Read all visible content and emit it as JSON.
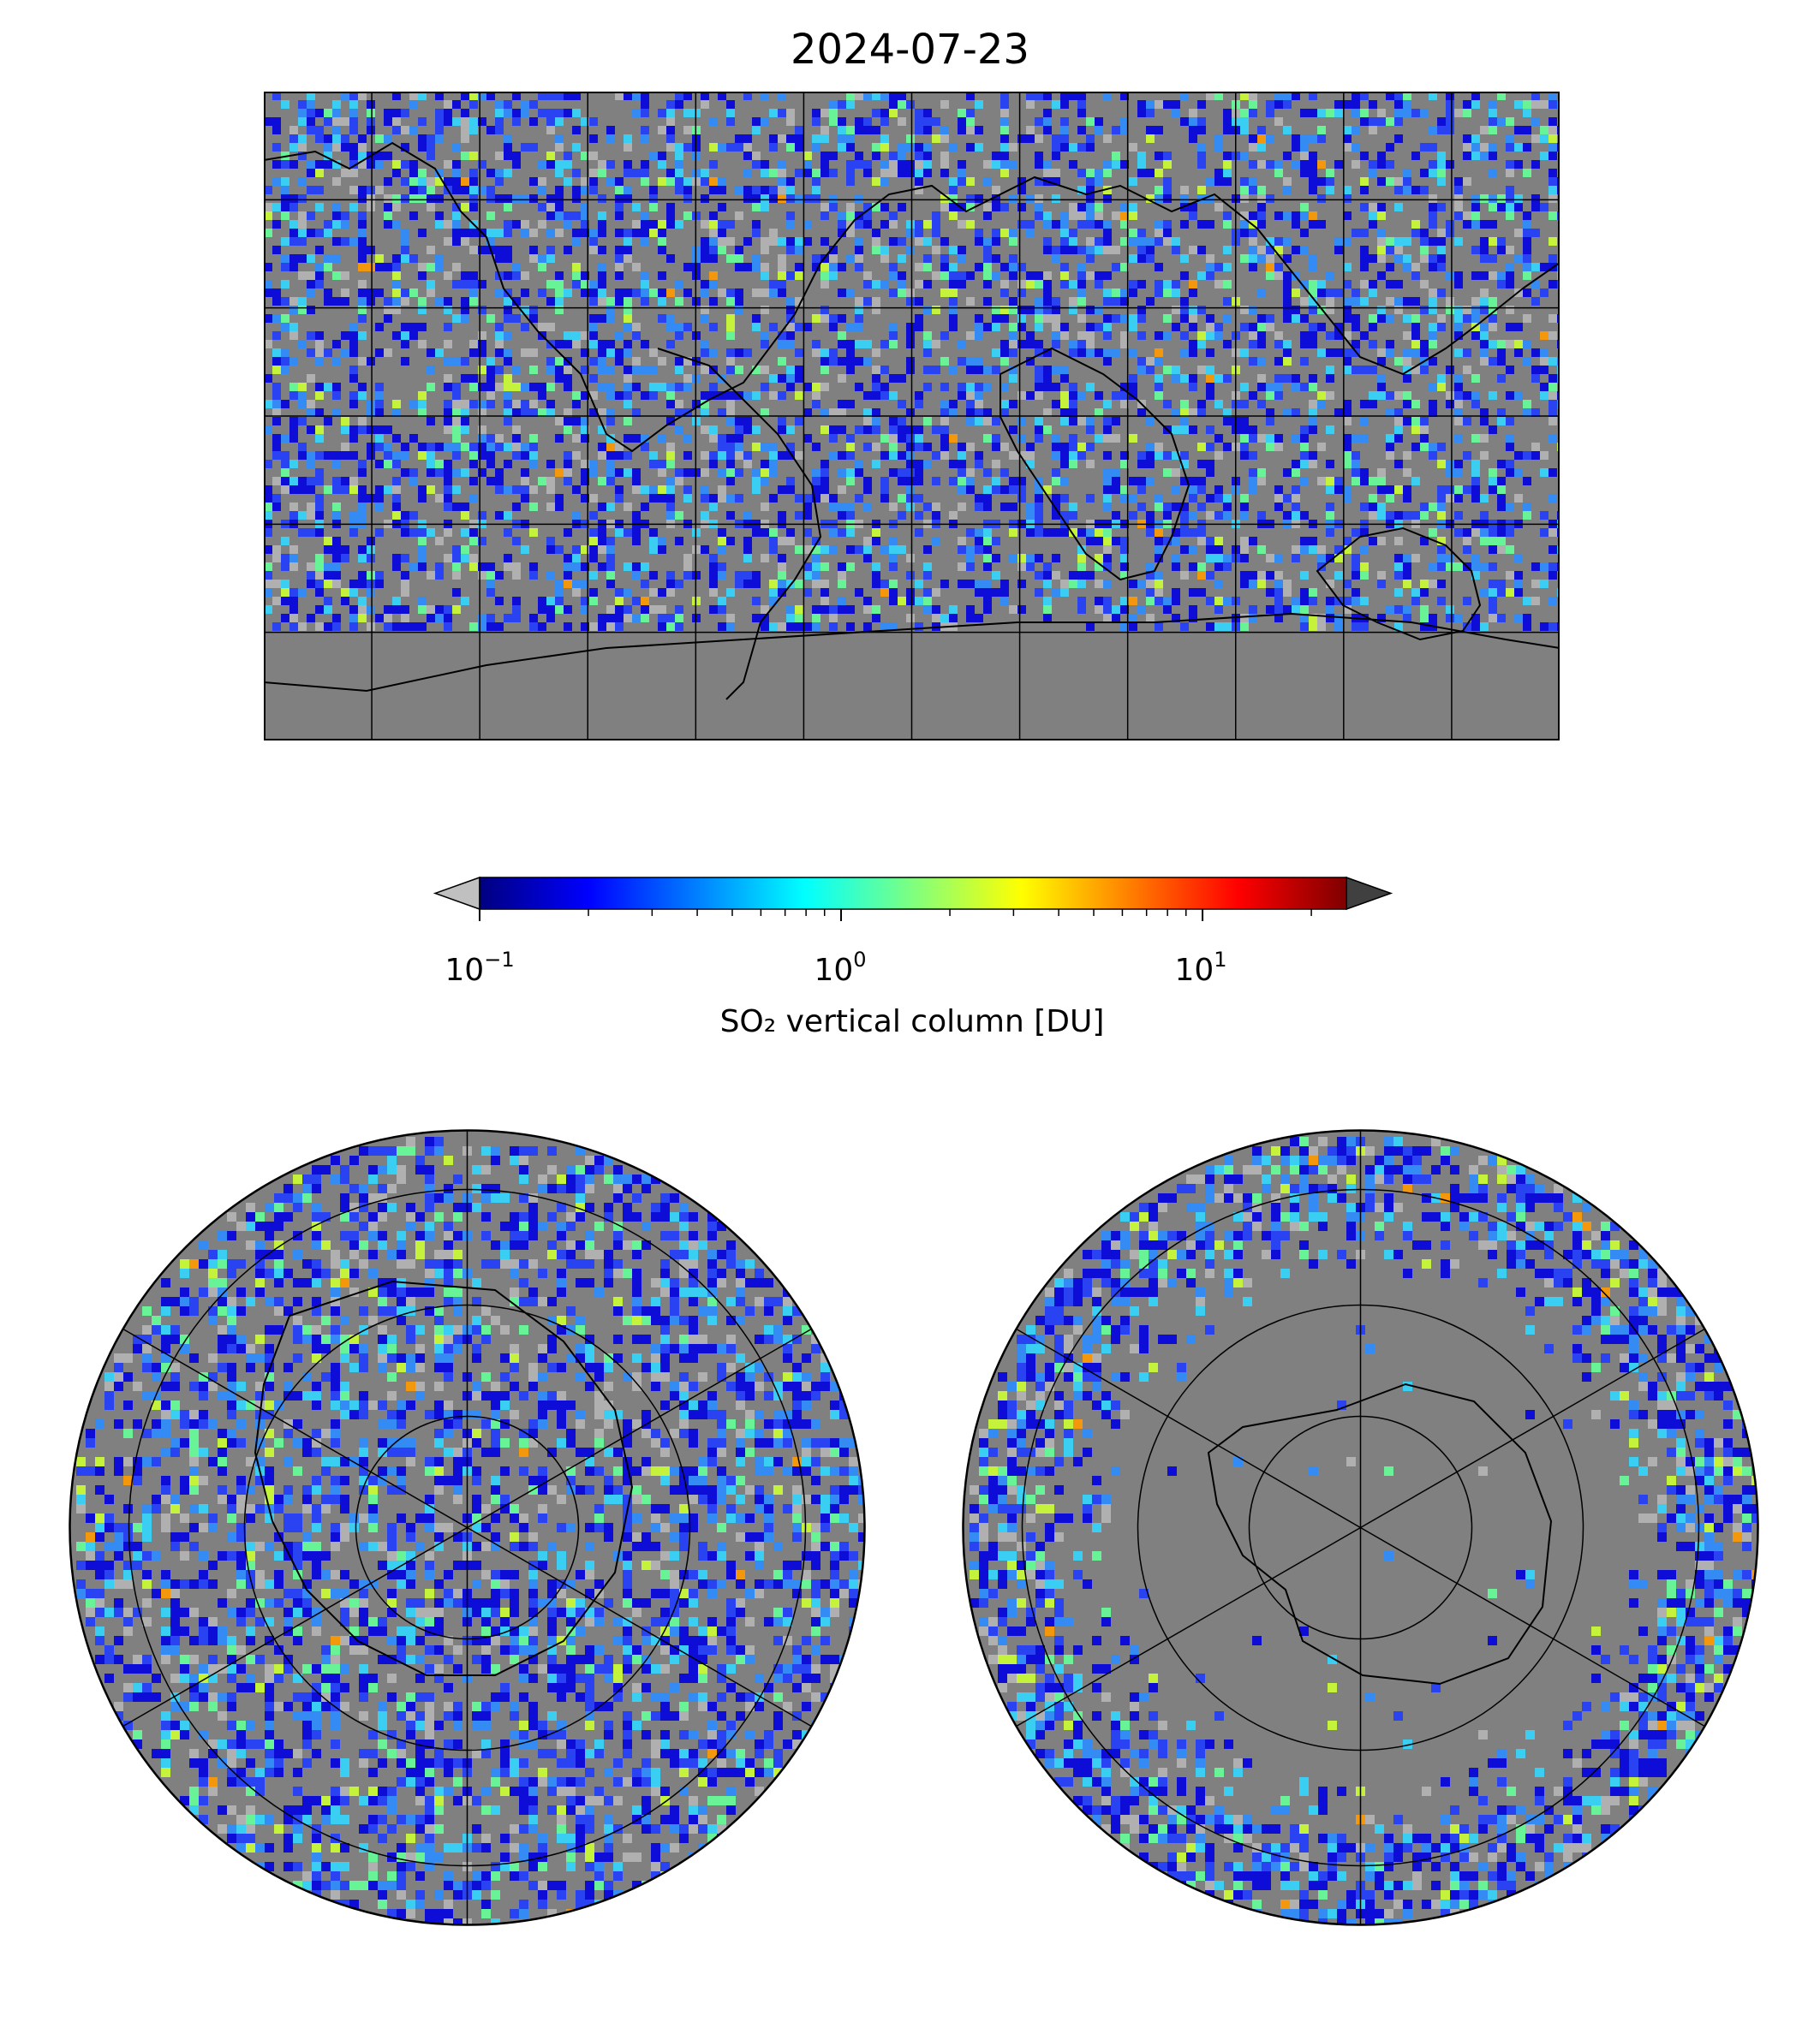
{
  "title": "2024-07-23",
  "colorbar": {
    "label": "SO₂ vertical column [DU]",
    "scale": "log",
    "range": [
      0.1,
      25
    ],
    "extend": "both",
    "ticks": [
      {
        "base": "10",
        "exp": "−1",
        "value": 0.1
      },
      {
        "base": "10",
        "exp": "0",
        "value": 1
      },
      {
        "base": "10",
        "exp": "1",
        "value": 10
      }
    ],
    "colormap": [
      "#00007f",
      "#0000ff",
      "#007fff",
      "#00ffff",
      "#7fff7f",
      "#ffff00",
      "#ff7f00",
      "#ff0000",
      "#7f0000"
    ],
    "under_color": "#c0c0c0",
    "over_color": "#404040"
  },
  "maps": {
    "world": {
      "projection": "equirectangular",
      "no_data_color": "#808080",
      "lon_grid_step": 30,
      "lat_grid_step": 30
    },
    "north_polar": {
      "projection": "north polar stereographic",
      "no_data_color": "#808080"
    },
    "south_polar": {
      "projection": "south polar stereographic",
      "no_data_color": "#808080"
    }
  }
}
